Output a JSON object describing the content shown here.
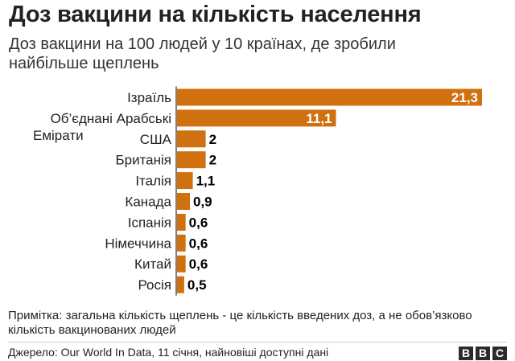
{
  "header": {
    "title": "Доз вакцини на кількість населення",
    "subtitle": "Доз вакцини на 100 людей у 10 країнах, де зробили найбільше щеплень"
  },
  "note": "Примітка: загальна кількість щеплень - це кількість введених доз, а не обов’язково кількість вакцинованих людей",
  "source": "Джерело: Our World In Data, 11 січня, найновіші доступні дані",
  "logo": [
    "B",
    "B",
    "C"
  ],
  "colors": {
    "bar": "#d1700e",
    "axis": "#555555",
    "inside_label": "#ffffff",
    "outside_label": "#000000"
  },
  "chart_data": {
    "type": "bar",
    "orientation": "horizontal",
    "categories": [
      "Ізраїль",
      "Об’єднані Арабські Емірати",
      "США",
      "Британія",
      "Італія",
      "Канада",
      "Іспанія",
      "Німеччина",
      "Китай",
      "Росія"
    ],
    "category_lines": [
      [
        "Ізраїль"
      ],
      [
        "Об’єднані Арабські",
        "Емірати"
      ],
      [
        "США"
      ],
      [
        "Британія"
      ],
      [
        "Італія"
      ],
      [
        "Канада"
      ],
      [
        "Іспанія"
      ],
      [
        "Німеччина"
      ],
      [
        "Китай"
      ],
      [
        "Росія"
      ]
    ],
    "values": [
      21.3,
      11.1,
      2,
      2,
      1.1,
      0.9,
      0.6,
      0.6,
      0.6,
      0.5
    ],
    "value_labels": [
      "21,3",
      "11,1",
      "2",
      "2",
      "1,1",
      "0,9",
      "0,6",
      "0,6",
      "0,6",
      "0,5"
    ],
    "xlim": [
      0,
      21.3
    ],
    "grid": false,
    "legend": "none"
  }
}
